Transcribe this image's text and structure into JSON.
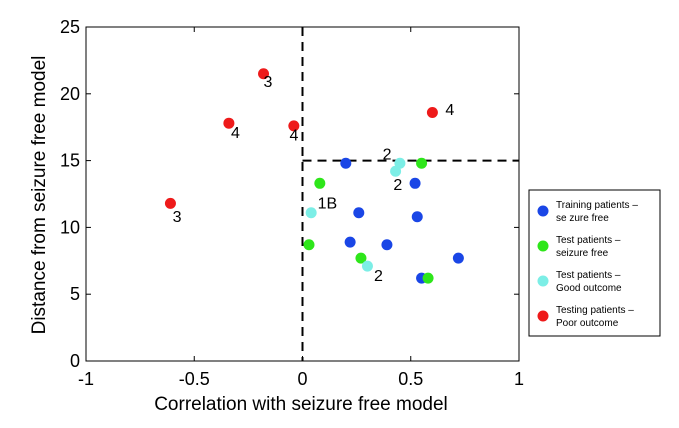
{
  "chart_data": {
    "type": "scatter",
    "xlabel": "Correlation with seizure free model",
    "ylabel": "Distance from seizure free model",
    "xlim": [
      -1,
      1
    ],
    "ylim": [
      0,
      25
    ],
    "xticks": [
      -1,
      -0.5,
      0,
      0.5,
      1
    ],
    "xtick_labels": [
      "-1",
      "-0.5",
      "0",
      "0.5",
      "1"
    ],
    "yticks": [
      0,
      5,
      10,
      15,
      20,
      25
    ],
    "ytick_labels": [
      "0",
      "5",
      "10",
      "15",
      "20",
      "25"
    ],
    "reference_lines": [
      {
        "orientation": "vertical",
        "x": 0,
        "y_from": 0,
        "y_to": 25,
        "style": "dashed"
      },
      {
        "orientation": "horizontal",
        "y": 15,
        "x_from": 0,
        "x_to": 1,
        "style": "dashed"
      }
    ],
    "series": [
      {
        "name": "Training patients – seizure free",
        "legend_lines": [
          "Training patients –",
          "se zure free"
        ],
        "color": "#1a46e6",
        "points": [
          {
            "x": 0.2,
            "y": 14.8
          },
          {
            "x": 0.52,
            "y": 13.3
          },
          {
            "x": 0.26,
            "y": 11.1
          },
          {
            "x": 0.53,
            "y": 10.8
          },
          {
            "x": 0.22,
            "y": 8.9
          },
          {
            "x": 0.39,
            "y": 8.7
          },
          {
            "x": 0.72,
            "y": 7.7
          },
          {
            "x": 0.55,
            "y": 6.2
          }
        ]
      },
      {
        "name": "Test patients – seizure free",
        "legend_lines": [
          "Test patients –",
          "seizure free"
        ],
        "color": "#2ee61a",
        "points": [
          {
            "x": 0.55,
            "y": 14.8
          },
          {
            "x": 0.08,
            "y": 13.3
          },
          {
            "x": 0.03,
            "y": 8.7
          },
          {
            "x": 0.27,
            "y": 7.7
          },
          {
            "x": 0.58,
            "y": 6.2
          }
        ]
      },
      {
        "name": "Test patients – Good outcome",
        "legend_lines": [
          "Test patients –",
          "Good outcome"
        ],
        "color": "#7ceee6",
        "points": [
          {
            "x": 0.45,
            "y": 14.8
          },
          {
            "x": 0.43,
            "y": 14.2
          },
          {
            "x": 0.04,
            "y": 11.1
          },
          {
            "x": 0.3,
            "y": 7.1
          }
        ]
      },
      {
        "name": "Testing patients – Poor outcome",
        "legend_lines": [
          "Testing patients –",
          "Poor outcome"
        ],
        "color": "#ee1a1a",
        "points": [
          {
            "x": -0.18,
            "y": 21.5
          },
          {
            "x": -0.34,
            "y": 17.8
          },
          {
            "x": -0.04,
            "y": 17.6
          },
          {
            "x": 0.6,
            "y": 18.6
          },
          {
            "x": -0.61,
            "y": 11.8
          }
        ]
      }
    ],
    "annotations": [
      {
        "text": "3",
        "x": -0.18,
        "y": 20.5,
        "anchor": "start"
      },
      {
        "text": "4",
        "x": -0.33,
        "y": 16.7,
        "anchor": "start"
      },
      {
        "text": "4",
        "x": -0.06,
        "y": 16.5,
        "anchor": "start"
      },
      {
        "text": "4",
        "x": 0.66,
        "y": 18.4,
        "anchor": "start"
      },
      {
        "text": "3",
        "x": -0.6,
        "y": 10.4,
        "anchor": "start"
      },
      {
        "text": "2",
        "x": 0.37,
        "y": 15.1,
        "anchor": "start"
      },
      {
        "text": "2",
        "x": 0.42,
        "y": 12.8,
        "anchor": "start"
      },
      {
        "text": "1B",
        "x": 0.07,
        "y": 11.4,
        "anchor": "start"
      },
      {
        "text": "2",
        "x": 0.33,
        "y": 6.0,
        "anchor": "start"
      }
    ],
    "legend_position": "right"
  }
}
